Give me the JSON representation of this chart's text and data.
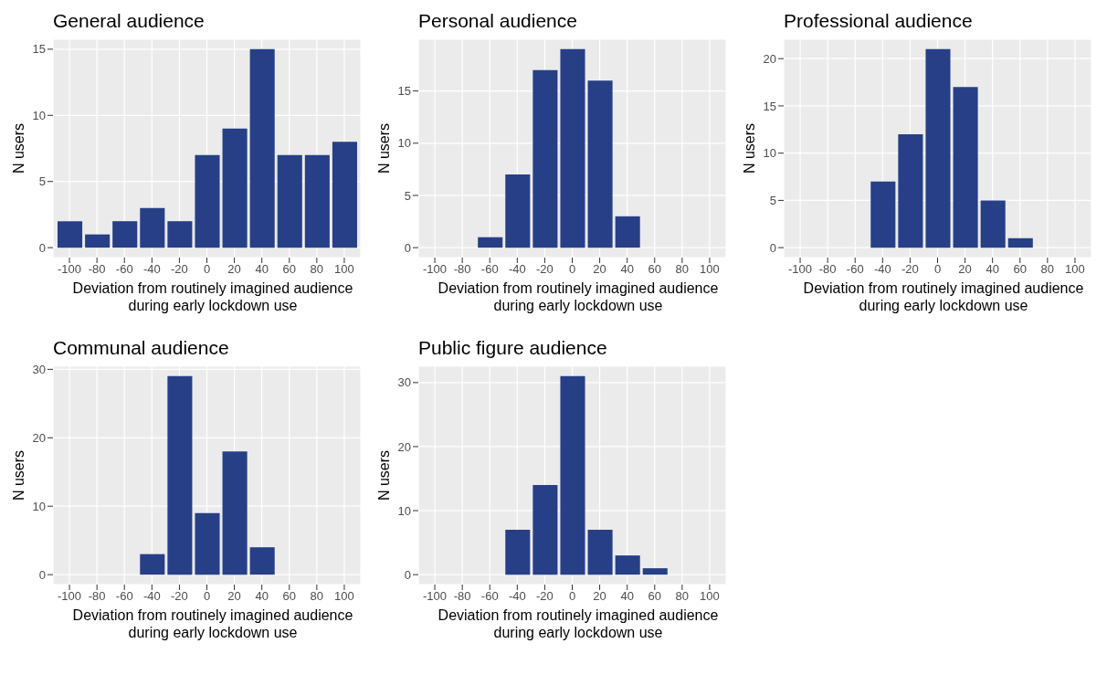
{
  "chart_data": [
    {
      "type": "histogram",
      "title": "General audience",
      "xlabel": "Deviation from routinely imagined audience\nduring early lockdown use",
      "ylabel": "N users",
      "color": "#273f87",
      "bins": [
        -110,
        -90,
        -70,
        -50,
        -30,
        -10,
        10,
        30,
        50,
        70,
        90,
        110
      ],
      "values": [
        2,
        1,
        2,
        3,
        2,
        7,
        9,
        15,
        7,
        7,
        8
      ],
      "xlim": [
        -112,
        112
      ],
      "xticks": [
        -100,
        -80,
        -60,
        -40,
        -20,
        0,
        20,
        40,
        60,
        80,
        100
      ],
      "ylim": [
        -0.75,
        15.75
      ],
      "yticks": [
        0,
        5,
        10,
        15
      ],
      "grid": true
    },
    {
      "type": "histogram",
      "title": "Personal audience",
      "xlabel": "Deviation from routinely imagined audience\nduring early lockdown use",
      "ylabel": "N users",
      "color": "#273f87",
      "bins": [
        -110,
        -90,
        -70,
        -50,
        -30,
        -10,
        10,
        30,
        50,
        70,
        90,
        110
      ],
      "values": [
        0,
        0,
        1,
        7,
        17,
        19,
        16,
        3,
        0,
        0,
        0
      ],
      "xlim": [
        -112,
        112
      ],
      "xticks": [
        -100,
        -80,
        -60,
        -40,
        -20,
        0,
        20,
        40,
        60,
        80,
        100
      ],
      "ylim": [
        -0.95,
        19.95
      ],
      "yticks": [
        0,
        5,
        10,
        15
      ],
      "grid": true
    },
    {
      "type": "histogram",
      "title": "Professional audience",
      "xlabel": "Deviation from routinely imagined audience\nduring early lockdown use",
      "ylabel": "N users",
      "color": "#273f87",
      "bins": [
        -110,
        -90,
        -70,
        -50,
        -30,
        -10,
        10,
        30,
        50,
        70,
        90,
        110
      ],
      "values": [
        0,
        0,
        0,
        7,
        12,
        21,
        17,
        5,
        1,
        0,
        0
      ],
      "xlim": [
        -112,
        112
      ],
      "xticks": [
        -100,
        -80,
        -60,
        -40,
        -20,
        0,
        20,
        40,
        60,
        80,
        100
      ],
      "ylim": [
        -1.05,
        22.05
      ],
      "yticks": [
        0,
        5,
        10,
        15,
        20
      ],
      "grid": true
    },
    {
      "type": "histogram",
      "title": "Communal audience",
      "xlabel": "Deviation from routinely imagined audience\nduring early lockdown use",
      "ylabel": "N users",
      "color": "#273f87",
      "bins": [
        -110,
        -90,
        -70,
        -50,
        -30,
        -10,
        10,
        30,
        50,
        70,
        90,
        110
      ],
      "values": [
        0,
        0,
        0,
        3,
        29,
        9,
        18,
        4,
        0,
        0,
        0
      ],
      "xlim": [
        -112,
        112
      ],
      "xticks": [
        -100,
        -80,
        -60,
        -40,
        -20,
        0,
        20,
        40,
        60,
        80,
        100
      ],
      "ylim": [
        -1.45,
        30.45
      ],
      "yticks": [
        0,
        10,
        20,
        30
      ],
      "grid": true
    },
    {
      "type": "histogram",
      "title": "Public figure audience",
      "xlabel": "Deviation from routinely imagined audience\nduring early lockdown use",
      "ylabel": "N users",
      "color": "#273f87",
      "bins": [
        -110,
        -90,
        -70,
        -50,
        -30,
        -10,
        10,
        30,
        50,
        70,
        90,
        110
      ],
      "values": [
        0,
        0,
        0,
        7,
        14,
        31,
        7,
        3,
        1,
        0,
        0
      ],
      "xlim": [
        -112,
        112
      ],
      "xticks": [
        -100,
        -80,
        -60,
        -40,
        -20,
        0,
        20,
        40,
        60,
        80,
        100
      ],
      "ylim": [
        -1.55,
        32.55
      ],
      "yticks": [
        0,
        10,
        20,
        30
      ],
      "grid": true
    }
  ]
}
